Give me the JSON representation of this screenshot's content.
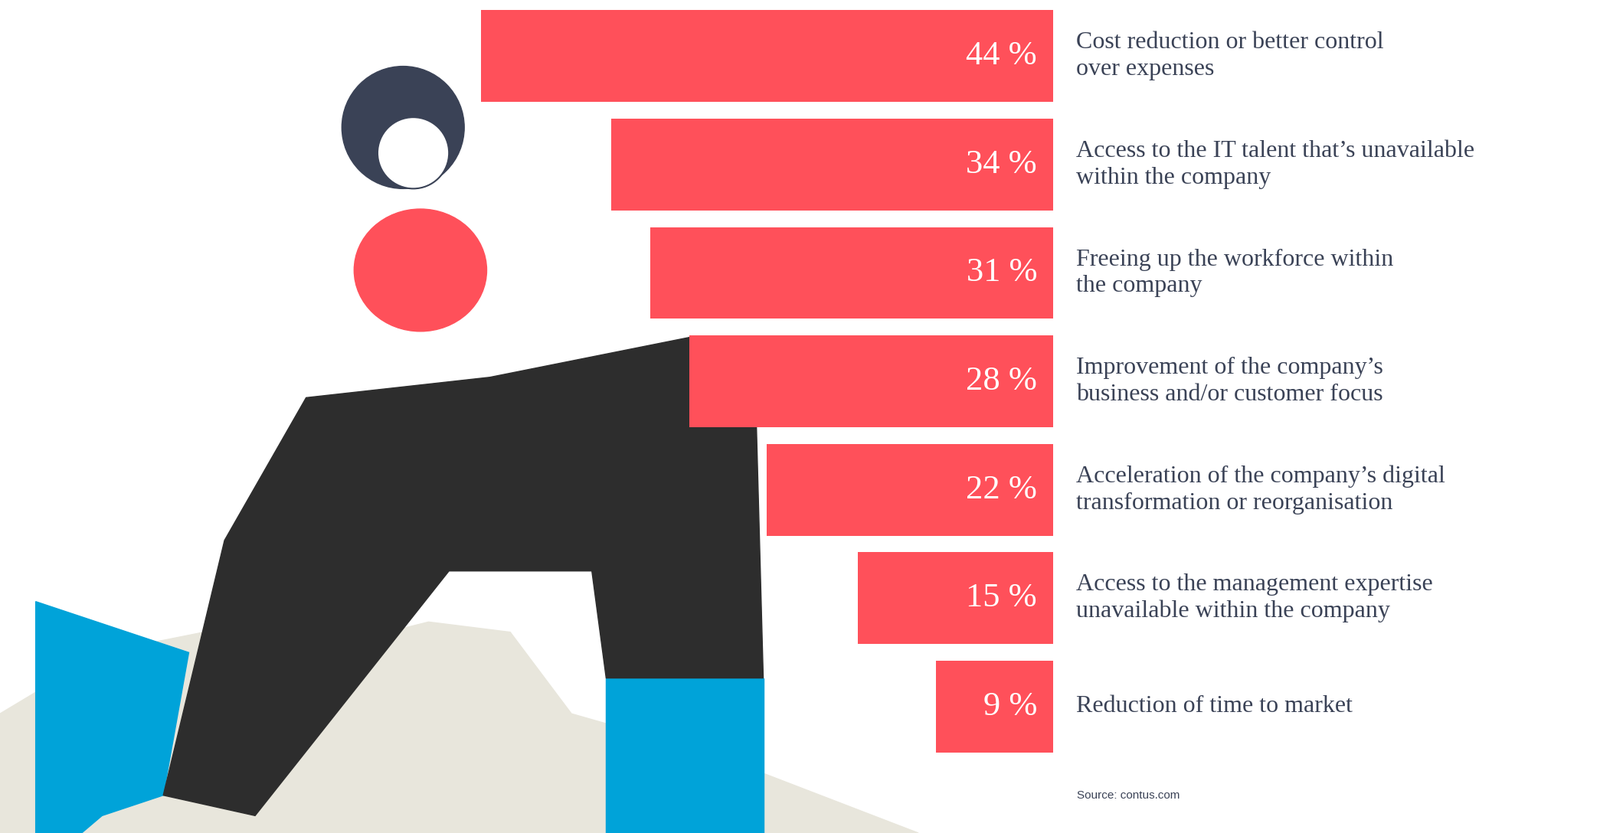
{
  "chart_data": {
    "type": "bar",
    "orientation": "horizontal",
    "categories": [
      "Cost reduction or better control\nover expenses",
      "Access to the IT talent that’s unavailable\nwithin the company",
      "Freeing up the workforce within\nthe company",
      "Improvement of the company’s\nbusiness and/or customer focus",
      "Acceleration of the company’s digital\ntransformation or reorganisation",
      "Access to the management expertise\nunavailable within the company",
      "Reduction of time to market"
    ],
    "values": [
      44,
      34,
      31,
      28,
      22,
      15,
      9
    ],
    "value_labels": [
      "44 %",
      "34 %",
      "31 %",
      "28 %",
      "22 %",
      "15 %",
      "9 %"
    ],
    "data_labels": true,
    "color": "#ff505a",
    "xlim": [
      0,
      81
    ],
    "xticks": [],
    "tick_labels": false,
    "grid": false,
    "source": "Source: contus.com"
  }
}
